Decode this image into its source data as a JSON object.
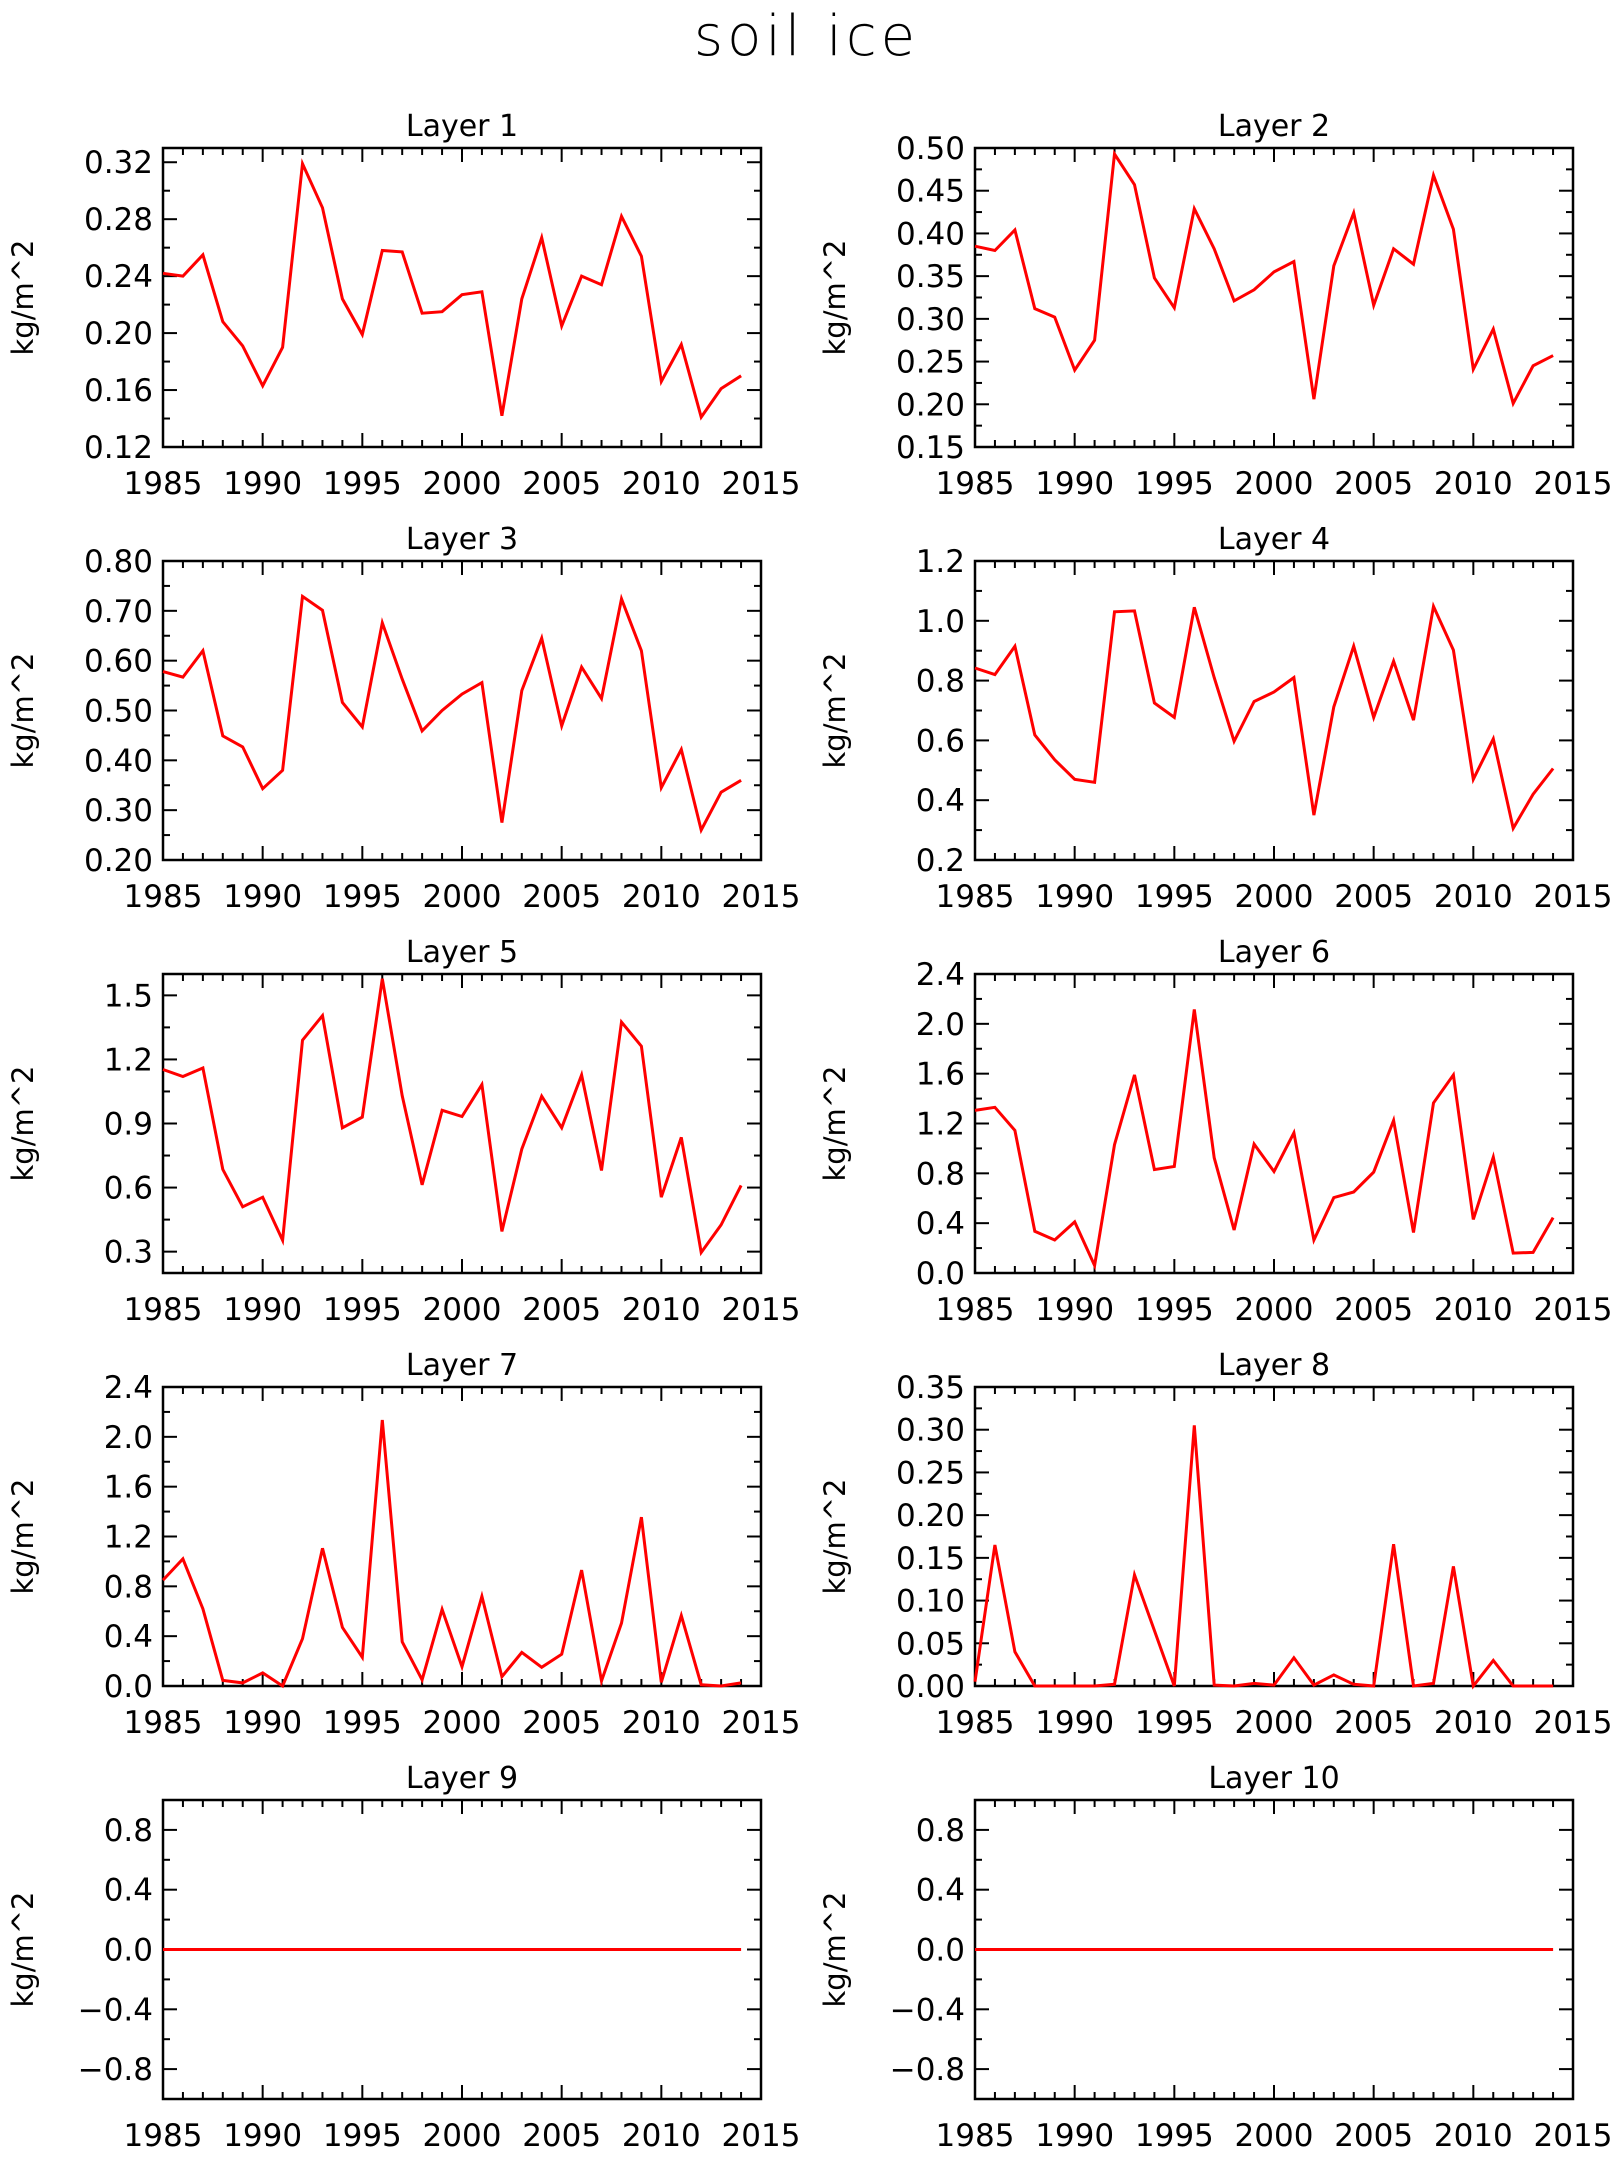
{
  "title": "soil ice",
  "colors": {
    "line": "#ff0000",
    "axis": "#000000"
  },
  "chart_data": [
    {
      "type": "line",
      "title": "Layer 1",
      "ylabel": "kg/m^2",
      "x": [
        1985,
        1986,
        1987,
        1988,
        1989,
        1990,
        1991,
        1992,
        1993,
        1994,
        1995,
        1996,
        1997,
        1998,
        1999,
        2000,
        2001,
        2002,
        2003,
        2004,
        2005,
        2006,
        2007,
        2008,
        2009,
        2010,
        2011,
        2012,
        2013,
        2014
      ],
      "values": [
        0.242,
        0.24,
        0.255,
        0.208,
        0.191,
        0.163,
        0.19,
        0.319,
        0.288,
        0.224,
        0.199,
        0.258,
        0.257,
        0.214,
        0.215,
        0.227,
        0.229,
        0.142,
        0.224,
        0.267,
        0.205,
        0.24,
        0.234,
        0.282,
        0.254,
        0.166,
        0.192,
        0.141,
        0.161,
        0.17
      ],
      "xlim": [
        1985,
        2015
      ],
      "ylim": [
        0.12,
        0.33
      ],
      "xticks": [
        "1985",
        "1990",
        "1995",
        "2000",
        "2005",
        "2010",
        "2015"
      ],
      "yticks": [
        "0.12",
        "0.16",
        "0.20",
        "0.24",
        "0.28",
        "0.32"
      ]
    },
    {
      "type": "line",
      "title": "Layer 2",
      "ylabel": "kg/m^2",
      "x": [
        1985,
        1986,
        1987,
        1988,
        1989,
        1990,
        1991,
        1992,
        1993,
        1994,
        1995,
        1996,
        1997,
        1998,
        1999,
        2000,
        2001,
        2002,
        2003,
        2004,
        2005,
        2006,
        2007,
        2008,
        2009,
        2010,
        2011,
        2012,
        2013,
        2014
      ],
      "values": [
        0.385,
        0.38,
        0.404,
        0.312,
        0.302,
        0.24,
        0.275,
        0.493,
        0.457,
        0.348,
        0.313,
        0.429,
        0.382,
        0.321,
        0.334,
        0.355,
        0.367,
        0.206,
        0.362,
        0.424,
        0.316,
        0.382,
        0.364,
        0.468,
        0.405,
        0.241,
        0.288,
        0.201,
        0.245,
        0.257
      ],
      "xlim": [
        1985,
        2015
      ],
      "ylim": [
        0.15,
        0.5
      ],
      "xticks": [
        "1985",
        "1990",
        "1995",
        "2000",
        "2005",
        "2010",
        "2015"
      ],
      "yticks": [
        "0.15",
        "0.20",
        "0.25",
        "0.30",
        "0.35",
        "0.40",
        "0.45",
        "0.50"
      ]
    },
    {
      "type": "line",
      "title": "Layer 3",
      "ylabel": "kg/m^2",
      "x": [
        1985,
        1986,
        1987,
        1988,
        1989,
        1990,
        1991,
        1992,
        1993,
        1994,
        1995,
        1996,
        1997,
        1998,
        1999,
        2000,
        2001,
        2002,
        2003,
        2004,
        2005,
        2006,
        2007,
        2008,
        2009,
        2010,
        2011,
        2012,
        2013,
        2014
      ],
      "values": [
        0.578,
        0.567,
        0.62,
        0.449,
        0.427,
        0.343,
        0.38,
        0.729,
        0.701,
        0.516,
        0.467,
        0.676,
        0.563,
        0.459,
        0.5,
        0.533,
        0.556,
        0.275,
        0.54,
        0.645,
        0.469,
        0.587,
        0.524,
        0.724,
        0.62,
        0.345,
        0.422,
        0.26,
        0.336,
        0.36
      ],
      "xlim": [
        1985,
        2015
      ],
      "ylim": [
        0.2,
        0.8
      ],
      "xticks": [
        "1985",
        "1990",
        "1995",
        "2000",
        "2005",
        "2010",
        "2015"
      ],
      "yticks": [
        "0.20",
        "0.30",
        "0.40",
        "0.50",
        "0.60",
        "0.70",
        "0.80"
      ]
    },
    {
      "type": "line",
      "title": "Layer 4",
      "ylabel": "kg/m^2",
      "x": [
        1985,
        1986,
        1987,
        1988,
        1989,
        1990,
        1991,
        1992,
        1993,
        1994,
        1995,
        1996,
        1997,
        1998,
        1999,
        2000,
        2001,
        2002,
        2003,
        2004,
        2005,
        2006,
        2007,
        2008,
        2009,
        2010,
        2011,
        2012,
        2013,
        2014
      ],
      "values": [
        0.842,
        0.82,
        0.915,
        0.618,
        0.535,
        0.47,
        0.46,
        1.03,
        1.033,
        0.725,
        0.677,
        1.045,
        0.81,
        0.597,
        0.73,
        0.762,
        0.81,
        0.35,
        0.712,
        0.915,
        0.677,
        0.865,
        0.668,
        1.048,
        0.902,
        0.47,
        0.605,
        0.306,
        0.42,
        0.506
      ],
      "xlim": [
        1985,
        2015
      ],
      "ylim": [
        0.2,
        1.2
      ],
      "xticks": [
        "1985",
        "1990",
        "1995",
        "2000",
        "2005",
        "2010",
        "2015"
      ],
      "yticks": [
        "0.2",
        "0.4",
        "0.6",
        "0.8",
        "1.0",
        "1.2"
      ]
    },
    {
      "type": "line",
      "title": "Layer 5",
      "ylabel": "kg/m^2",
      "x": [
        1985,
        1986,
        1987,
        1988,
        1989,
        1990,
        1991,
        1992,
        1993,
        1994,
        1995,
        1996,
        1997,
        1998,
        1999,
        2000,
        2001,
        2002,
        2003,
        2004,
        2005,
        2006,
        2007,
        2008,
        2009,
        2010,
        2011,
        2012,
        2013,
        2014
      ],
      "values": [
        1.153,
        1.12,
        1.16,
        0.685,
        0.51,
        0.555,
        0.353,
        1.29,
        1.405,
        0.88,
        0.93,
        1.578,
        1.03,
        0.613,
        0.962,
        0.933,
        1.082,
        0.395,
        0.78,
        1.028,
        0.88,
        1.127,
        0.68,
        1.375,
        1.262,
        0.555,
        0.835,
        0.296,
        0.425,
        0.61
      ],
      "xlim": [
        1985,
        2015
      ],
      "ylim": [
        0.2,
        1.6
      ],
      "xticks": [
        "1985",
        "1990",
        "1995",
        "2000",
        "2005",
        "2010",
        "2015"
      ],
      "yticks": [
        "0.3",
        "0.6",
        "0.9",
        "1.2",
        "1.5"
      ]
    },
    {
      "type": "line",
      "title": "Layer 6",
      "ylabel": "kg/m^2",
      "x": [
        1985,
        1986,
        1987,
        1988,
        1989,
        1990,
        1991,
        1992,
        1993,
        1994,
        1995,
        1996,
        1997,
        1998,
        1999,
        2000,
        2001,
        2002,
        2003,
        2004,
        2005,
        2006,
        2007,
        2008,
        2009,
        2010,
        2011,
        2012,
        2013,
        2014
      ],
      "values": [
        1.305,
        1.33,
        1.145,
        0.335,
        0.265,
        0.41,
        0.06,
        1.03,
        1.59,
        0.83,
        0.855,
        2.115,
        0.925,
        0.345,
        1.035,
        0.815,
        1.125,
        0.265,
        0.605,
        0.65,
        0.81,
        1.225,
        0.325,
        1.365,
        1.59,
        0.43,
        0.93,
        0.16,
        0.165,
        0.445
      ],
      "xlim": [
        1985,
        2015
      ],
      "ylim": [
        0.0,
        2.4
      ],
      "xticks": [
        "1985",
        "1990",
        "1995",
        "2000",
        "2005",
        "2010",
        "2015"
      ],
      "yticks": [
        "0.0",
        "0.4",
        "0.8",
        "1.2",
        "1.6",
        "2.0",
        "2.4"
      ]
    },
    {
      "type": "line",
      "title": "Layer 7",
      "ylabel": "kg/m^2",
      "x": [
        1985,
        1986,
        1987,
        1988,
        1989,
        1990,
        1991,
        1992,
        1993,
        1994,
        1995,
        1996,
        1997,
        1998,
        1999,
        2000,
        2001,
        2002,
        2003,
        2004,
        2005,
        2006,
        2007,
        2008,
        2009,
        2010,
        2011,
        2012,
        2013,
        2014
      ],
      "values": [
        0.85,
        1.02,
        0.62,
        0.045,
        0.025,
        0.105,
        0.0,
        0.38,
        1.105,
        0.47,
        0.23,
        2.135,
        0.355,
        0.05,
        0.615,
        0.155,
        0.72,
        0.075,
        0.27,
        0.15,
        0.255,
        0.93,
        0.04,
        0.505,
        1.355,
        0.03,
        0.565,
        0.01,
        0.0,
        0.025
      ],
      "xlim": [
        1985,
        2015
      ],
      "ylim": [
        0.0,
        2.4
      ],
      "xticks": [
        "1985",
        "1990",
        "1995",
        "2000",
        "2005",
        "2010",
        "2015"
      ],
      "yticks": [
        "0.0",
        "0.4",
        "0.8",
        "1.2",
        "1.6",
        "2.0",
        "2.4"
      ]
    },
    {
      "type": "line",
      "title": "Layer 8",
      "ylabel": "kg/m^2",
      "x": [
        1985,
        1986,
        1987,
        1988,
        1989,
        1990,
        1991,
        1992,
        1993,
        1994,
        1995,
        1996,
        1997,
        1998,
        1999,
        2000,
        2001,
        2002,
        2003,
        2004,
        2005,
        2006,
        2007,
        2008,
        2009,
        2010,
        2011,
        2012,
        2013,
        2014
      ],
      "values": [
        0.005,
        0.165,
        0.04,
        0.0,
        0.0,
        0.0,
        0.0,
        0.002,
        0.13,
        0.065,
        0.0,
        0.305,
        0.001,
        0.0,
        0.003,
        0.001,
        0.033,
        0.001,
        0.013,
        0.002,
        0.0,
        0.166,
        0.0,
        0.003,
        0.14,
        0.0,
        0.03,
        0.0,
        0.0,
        0.0
      ],
      "xlim": [
        1985,
        2015
      ],
      "ylim": [
        0.0,
        0.35
      ],
      "xticks": [
        "1985",
        "1990",
        "1995",
        "2000",
        "2005",
        "2010",
        "2015"
      ],
      "yticks": [
        "0.00",
        "0.05",
        "0.10",
        "0.15",
        "0.20",
        "0.25",
        "0.30",
        "0.35"
      ]
    },
    {
      "type": "line",
      "title": "Layer 9",
      "ylabel": "kg/m^2",
      "x": [
        1985,
        1986,
        1987,
        1988,
        1989,
        1990,
        1991,
        1992,
        1993,
        1994,
        1995,
        1996,
        1997,
        1998,
        1999,
        2000,
        2001,
        2002,
        2003,
        2004,
        2005,
        2006,
        2007,
        2008,
        2009,
        2010,
        2011,
        2012,
        2013,
        2014
      ],
      "values": [
        0,
        0,
        0,
        0,
        0,
        0,
        0,
        0,
        0,
        0,
        0,
        0,
        0,
        0,
        0,
        0,
        0,
        0,
        0,
        0,
        0,
        0,
        0,
        0,
        0,
        0,
        0,
        0,
        0,
        0
      ],
      "xlim": [
        1985,
        2015
      ],
      "ylim": [
        -1.0,
        1.0
      ],
      "xticks": [
        "1985",
        "1990",
        "1995",
        "2000",
        "2005",
        "2010",
        "2015"
      ],
      "yticks": [
        "−0.8",
        "−0.4",
        "0.0",
        "0.4",
        "0.8"
      ]
    },
    {
      "type": "line",
      "title": "Layer 10",
      "ylabel": "kg/m^2",
      "x": [
        1985,
        1986,
        1987,
        1988,
        1989,
        1990,
        1991,
        1992,
        1993,
        1994,
        1995,
        1996,
        1997,
        1998,
        1999,
        2000,
        2001,
        2002,
        2003,
        2004,
        2005,
        2006,
        2007,
        2008,
        2009,
        2010,
        2011,
        2012,
        2013,
        2014
      ],
      "values": [
        0,
        0,
        0,
        0,
        0,
        0,
        0,
        0,
        0,
        0,
        0,
        0,
        0,
        0,
        0,
        0,
        0,
        0,
        0,
        0,
        0,
        0,
        0,
        0,
        0,
        0,
        0,
        0,
        0,
        0
      ],
      "xlim": [
        1985,
        2015
      ],
      "ylim": [
        -1.0,
        1.0
      ],
      "xticks": [
        "1985",
        "1990",
        "1995",
        "2000",
        "2005",
        "2010",
        "2015"
      ],
      "yticks": [
        "−0.8",
        "−0.4",
        "0.0",
        "0.4",
        "0.8"
      ]
    }
  ]
}
